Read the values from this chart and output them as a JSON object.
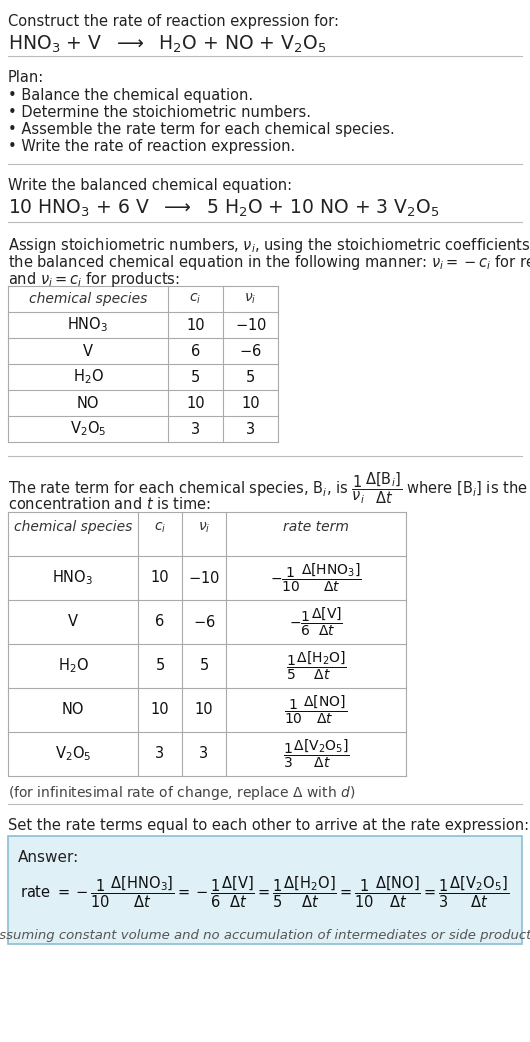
{
  "bg_color": "#ffffff",
  "text_color": "#222222",
  "title_line1": "Construct the rate of reaction expression for:",
  "title_eq": "HNO$_3$ + V  $\\longrightarrow$  H$_2$O + NO + V$_2$O$_5$",
  "plan_header": "Plan:",
  "plan_items": [
    "• Balance the chemical equation.",
    "• Determine the stoichiometric numbers.",
    "• Assemble the rate term for each chemical species.",
    "• Write the rate of reaction expression."
  ],
  "balanced_header": "Write the balanced chemical equation:",
  "balanced_eq": "10 HNO$_3$ + 6 V  $\\longrightarrow$  5 H$_2$O + 10 NO + 3 V$_2$O$_5$",
  "stoich_text1": "Assign stoichiometric numbers, $\\nu_i$, using the stoichiometric coefficients, $c_i$, from",
  "stoich_text2": "the balanced chemical equation in the following manner: $\\nu_i = -c_i$ for reactants",
  "stoich_text3": "and $\\nu_i = c_i$ for products:",
  "table1_col_headers": [
    "chemical species",
    "$c_i$",
    "$\\nu_i$"
  ],
  "table1_rows": [
    [
      "HNO$_3$",
      "10",
      "$-$10"
    ],
    [
      "V",
      "6",
      "$-$6"
    ],
    [
      "H$_2$O",
      "5",
      "5"
    ],
    [
      "NO",
      "10",
      "10"
    ],
    [
      "V$_2$O$_5$",
      "3",
      "3"
    ]
  ],
  "rate_text1": "The rate term for each chemical species, B$_i$, is $\\dfrac{1}{\\nu_i}\\dfrac{\\Delta[\\mathrm{B}_i]}{\\Delta t}$ where [B$_i$] is the amount",
  "rate_text2": "concentration and $t$ is time:",
  "table2_col_headers": [
    "chemical species",
    "$c_i$",
    "$\\nu_i$",
    "rate term"
  ],
  "table2_rows": [
    [
      "HNO$_3$",
      "10",
      "$-$10",
      "$-\\dfrac{1}{10}\\dfrac{\\Delta[\\mathrm{HNO_3}]}{\\Delta t}$"
    ],
    [
      "V",
      "6",
      "$-$6",
      "$-\\dfrac{1}{6}\\dfrac{\\Delta[\\mathrm{V}]}{\\Delta t}$"
    ],
    [
      "H$_2$O",
      "5",
      "5",
      "$\\dfrac{1}{5}\\dfrac{\\Delta[\\mathrm{H_2O}]}{\\Delta t}$"
    ],
    [
      "NO",
      "10",
      "10",
      "$\\dfrac{1}{10}\\dfrac{\\Delta[\\mathrm{NO}]}{\\Delta t}$"
    ],
    [
      "V$_2$O$_5$",
      "3",
      "3",
      "$\\dfrac{1}{3}\\dfrac{\\Delta[\\mathrm{V_2O_5}]}{\\Delta t}$"
    ]
  ],
  "infinitesimal_note": "(for infinitesimal rate of change, replace $\\Delta$ with $d$)",
  "set_equal_text": "Set the rate terms equal to each other to arrive at the rate expression:",
  "answer_box_color": "#dff0f7",
  "answer_box_border": "#8bbfd4",
  "answer_label": "Answer:",
  "answer_eq": "rate $= -\\dfrac{1}{10}\\dfrac{\\Delta[\\mathrm{HNO_3}]}{\\Delta t} = -\\dfrac{1}{6}\\dfrac{\\Delta[\\mathrm{V}]}{\\Delta t} = \\dfrac{1}{5}\\dfrac{\\Delta[\\mathrm{H_2O}]}{\\Delta t} = \\dfrac{1}{10}\\dfrac{\\Delta[\\mathrm{NO}]}{\\Delta t} = \\dfrac{1}{3}\\dfrac{\\Delta[\\mathrm{V_2O_5}]}{\\Delta t}$",
  "answer_note": "(assuming constant volume and no accumulation of intermediates or side products)"
}
